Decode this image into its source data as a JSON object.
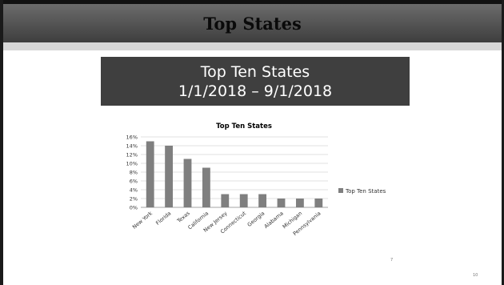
{
  "slide": {
    "header_title": "Top States",
    "banner_line1": "Top Ten States",
    "banner_line2": "1/1/2018 – 9/1/2018",
    "slide_number": "10",
    "small_mark": "7"
  },
  "chart_data": {
    "type": "bar",
    "title": "Top Ten States",
    "categories": [
      "New York",
      "Florida",
      "Texas",
      "California",
      "New Jersey",
      "Connecticut",
      "Georgia",
      "Alabama",
      "Michigan",
      "Pennsylvania"
    ],
    "series": [
      {
        "name": "Top Ten States",
        "values": [
          0.15,
          0.14,
          0.11,
          0.09,
          0.03,
          0.03,
          0.03,
          0.02,
          0.02,
          0.02
        ]
      }
    ],
    "ylim": [
      0,
      0.16
    ],
    "yticks": [
      "0%",
      "2%",
      "4%",
      "6%",
      "8%",
      "10%",
      "12%",
      "14%",
      "16%"
    ],
    "grid": true,
    "legend_position": "right",
    "bar_color": "#7f7f7f"
  }
}
